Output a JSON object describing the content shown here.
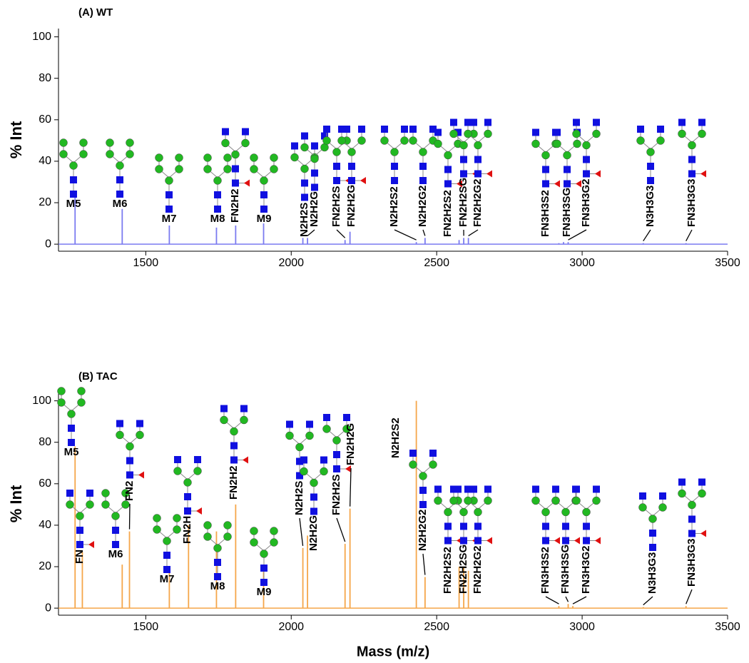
{
  "chart_data": [
    {
      "type": "stem",
      "title": "(A) WT",
      "ylabel": "% Int",
      "color": "#7b7bf0",
      "xlim": [
        1200,
        3500
      ],
      "xticks": [
        1500,
        2000,
        2500,
        3000,
        3500
      ],
      "ylim": [
        -3.4,
        104
      ],
      "yticks": [
        0,
        20,
        40,
        60,
        80,
        100
      ],
      "x": [
        1257,
        1419,
        1581,
        1743,
        1809,
        1905,
        2040,
        2056,
        2185,
        2202,
        2430,
        2460,
        2577,
        2593,
        2609,
        2920,
        2936,
        2952,
        3210,
        3357
      ],
      "values": [
        24,
        17,
        9,
        8,
        9,
        10,
        3,
        3,
        2,
        6,
        1,
        3,
        2,
        3,
        3,
        0.5,
        1,
        1,
        0.5,
        0.5
      ],
      "labels": [
        "M5",
        "M6",
        "M7",
        "M8",
        "FN2H2",
        "M9",
        "N2H2S",
        "N2H2G",
        "FN2H2S",
        "FN2H2G",
        "N2H2S2",
        "N2H2G2",
        "FN2H2S2",
        "FN2H2SG",
        "FN2H2G2",
        "FN3H3S2",
        "FN3H3SG",
        "FN3H3G2",
        "N3H3G3",
        "FN3H3G3"
      ]
    },
    {
      "type": "stem",
      "title": "(B) TAC",
      "ylabel": "% Int",
      "xlabel": "Mass (m/z)",
      "color": "#f5a64a",
      "xlim": [
        1200,
        3500
      ],
      "xticks": [
        1500,
        2000,
        2500,
        3000,
        3500
      ],
      "ylim": [
        -3.4,
        104
      ],
      "yticks": [
        0,
        20,
        40,
        60,
        80,
        100
      ],
      "x": [
        1257,
        1282,
        1419,
        1444,
        1581,
        1647,
        1743,
        1809,
        1905,
        2040,
        2056,
        2185,
        2202,
        2430,
        2460,
        2577,
        2593,
        2609,
        2920,
        2952,
        2968,
        3210,
        3357
      ],
      "values": [
        78,
        27,
        21,
        37,
        19,
        40,
        37,
        50,
        21,
        29,
        35,
        31,
        48,
        100,
        15,
        20,
        20,
        18,
        1,
        2,
        1,
        0.5,
        1
      ],
      "labels": [
        "M5",
        "FN",
        "M6",
        "FN2",
        "M7",
        "FN2H",
        "M8",
        "FN2H2",
        "M9",
        "N2H2S",
        "N2H2G",
        "FN2H2S",
        "FN2H2G",
        "N2H2S2",
        "N2H2G2",
        "FN2H2S2",
        "FN2H2SG",
        "FN2H2G2",
        "FN3H3S2",
        "FN3H3SG",
        "FN3H3G2",
        "N3H3G3",
        "FN3H3G3"
      ]
    }
  ]
}
